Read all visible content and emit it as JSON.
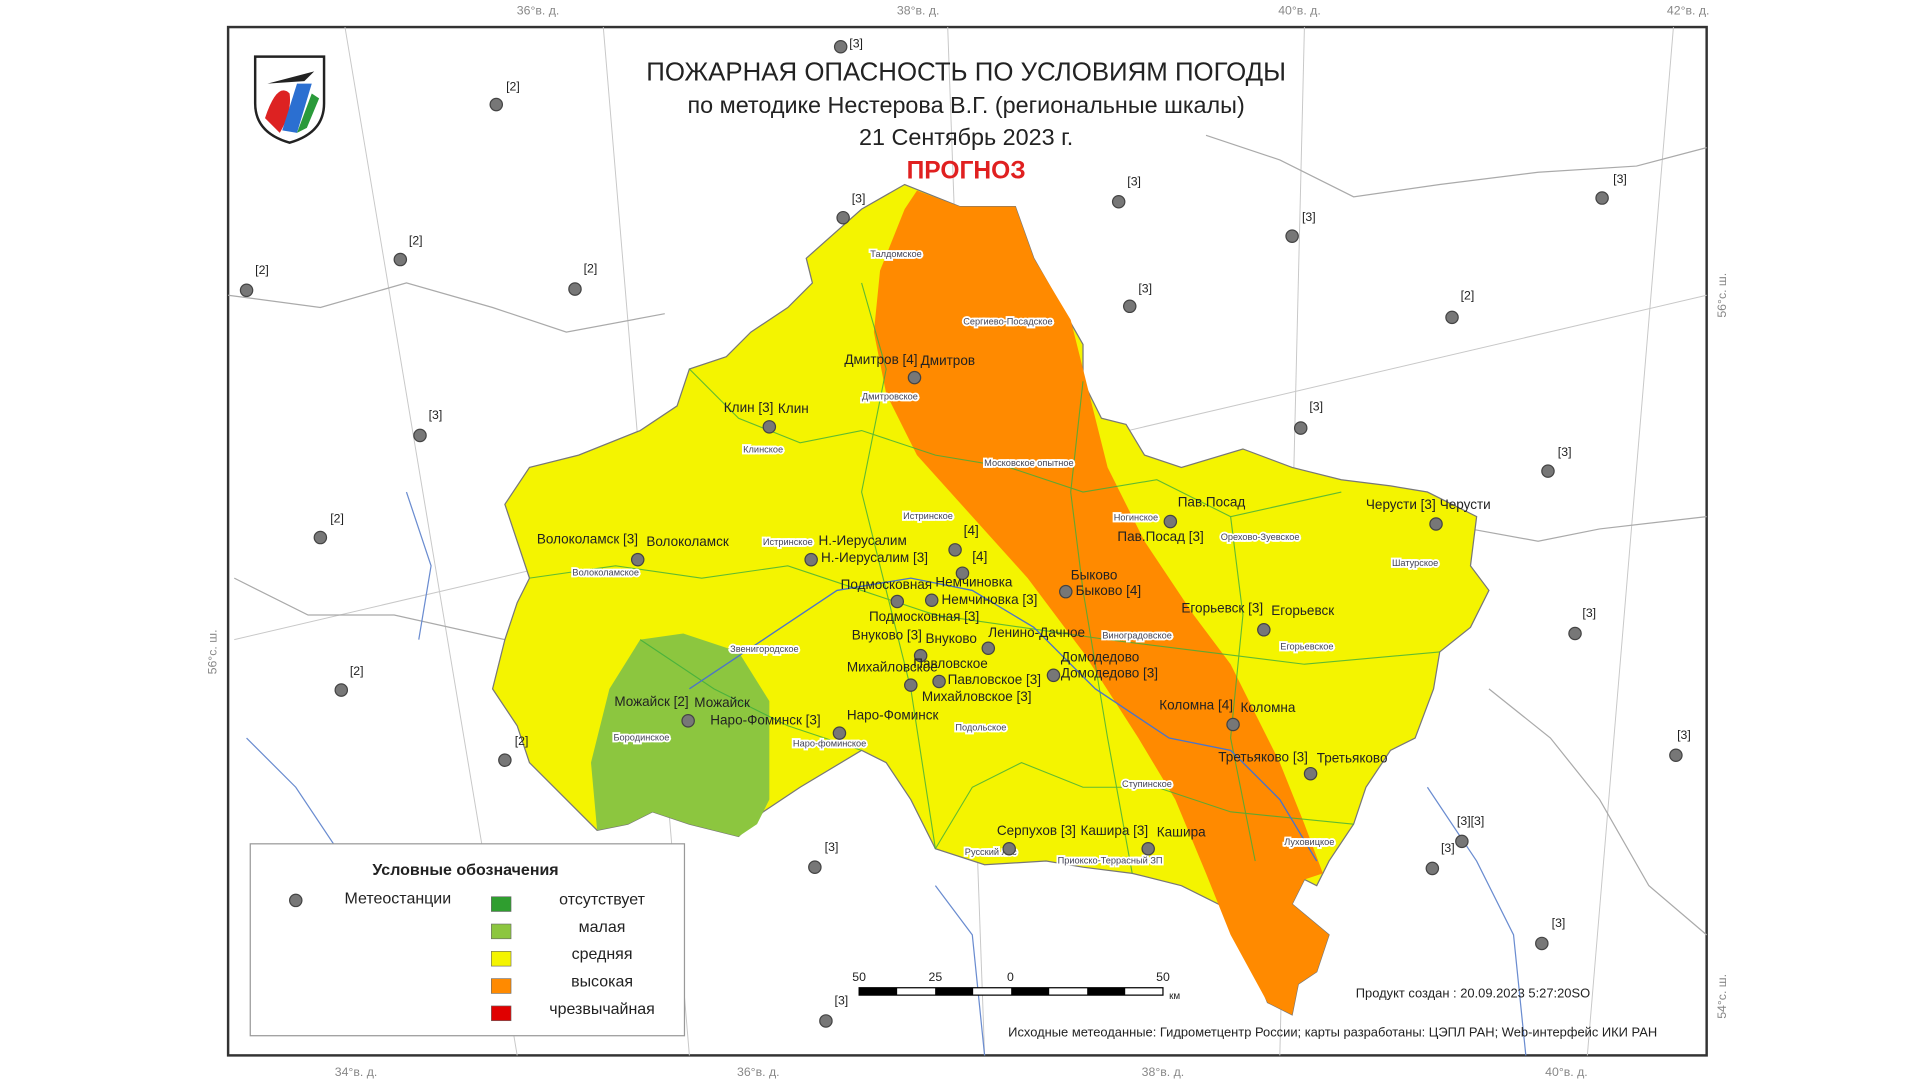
{
  "header": {
    "title": "ПОЖАРНАЯ ОПАСНОСТЬ ПО УСЛОВИЯМ ПОГОДЫ",
    "subtitle": "по методике Нестерова В.Г. (региональные шкалы)",
    "date": "21 Сентябрь 2023 г.",
    "forecast": "ПРОГНОЗ"
  },
  "legend": {
    "title": "Условные обозначения",
    "station": "Метеостанции",
    "items": [
      {
        "label": "отсутствует",
        "color": "#2f9e2f"
      },
      {
        "label": "малая",
        "color": "#8cc63f"
      },
      {
        "label": "средняя",
        "color": "#f4f400"
      },
      {
        "label": "высокая",
        "color": "#ff8a00"
      },
      {
        "label": "чрезвычайная",
        "color": "#e00000"
      }
    ]
  },
  "station_labels": [
    "Дмитров [4]",
    "Дмитров",
    "Клин [3]",
    "Клин",
    "Волоколамск [3]",
    "Волоколамск",
    "Н.-Иерусалим",
    "Н.-Иерусалим [3]",
    "[4]",
    "[4]",
    "Немчиновка",
    "Немчиновка [3]",
    "Подмосковная",
    "Подмосковная [3]",
    "Быково",
    "Быково [4]",
    "Внуково [3]",
    "Внуково",
    "Ленино-Дачное",
    "Домодедово",
    "Домодедово [3]",
    "Михайловское",
    "Михайловское [3]",
    "Павловское",
    "Павловское [3]",
    "Можайск [2]",
    "Можайск",
    "Наро-Фоминск [3]",
    "Наро-Фоминск",
    "Пав.Посад",
    "Пав.Посад [3]",
    "Черусти [3]",
    "Черусти",
    "Егорьевск [3]",
    "Егорьевск",
    "Коломна [4]",
    "Коломна",
    "Третьяково [3]",
    "Третьяково",
    "Серпухов [3]",
    "Кашира [3]",
    "Кашира"
  ],
  "outer_ratings": [
    "[3]",
    "[2]",
    "[2]",
    "[2]",
    "[2]",
    "[3]",
    "[3]",
    "[3]",
    "[3]",
    "[3]",
    "[2]",
    "[3]",
    "[3]",
    "[3]",
    "[2]",
    "[3]",
    "[2]",
    "[2]",
    "[3]",
    "[3]",
    "[3][3]",
    "[3]",
    "[3]",
    "[3]"
  ],
  "districts": [
    "Талдомское",
    "Сергиево-Посадское",
    "Дмитровское",
    "Клинское",
    "Московское опытное",
    "Истринское",
    "Ногинское",
    "Орехово-Зуевское",
    "Волоколамское",
    "Истринское",
    "Шатурское",
    "Звенигородское",
    "Виноградовское",
    "Егорьевское",
    "Бородинское",
    "Наро-фоминское",
    "Подольское",
    "Ступинское",
    "Луховицкое",
    "Русский лес",
    "Приокско-Террасный ЗП"
  ],
  "coords": {
    "top": [
      "36°в. д.",
      "38°в. д.",
      "40°в. д.",
      "42°в. д."
    ],
    "bottom": [
      "34°в. д.",
      "36°в. д.",
      "38°в. д.",
      "40°в. д."
    ],
    "left": [
      "56°с. ш."
    ],
    "right": [
      "56°с. ш.",
      "54°с. ш."
    ]
  },
  "scale": {
    "labels": [
      "50",
      "25",
      "0",
      "50"
    ],
    "unit": "км"
  },
  "footer": {
    "created": "Продукт создан : 20.09.2023 5:27:20SO",
    "sources": "Исходные метеоданные: Гидрометцентр России; карты разработаны: ЦЭПЛ РАН; Web-интерфейс ИКИ РАН"
  }
}
